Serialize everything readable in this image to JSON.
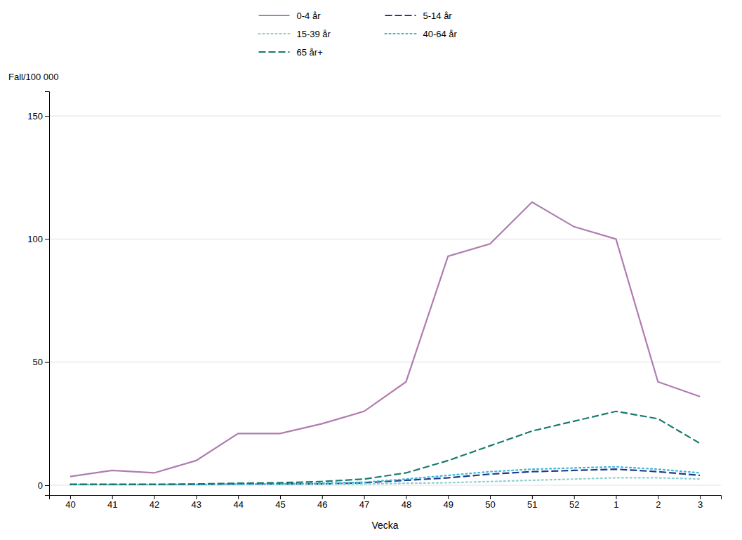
{
  "chart_data": {
    "type": "line",
    "x_label": "Vecka",
    "y_label": "Fall/100 000",
    "categories": [
      "40",
      "41",
      "42",
      "43",
      "44",
      "45",
      "46",
      "47",
      "48",
      "49",
      "50",
      "51",
      "52",
      "1",
      "2",
      "3"
    ],
    "series": [
      {
        "name": "0-4 år",
        "color": "#b07cb0",
        "line_style": "solid",
        "values": [
          3.5,
          6.0,
          5.0,
          10.0,
          21.0,
          21.0,
          25.0,
          30.0,
          42.0,
          93.0,
          98.0,
          115.0,
          105.0,
          100.0,
          42.0,
          36.0
        ]
      },
      {
        "name": "5-14 år",
        "color": "#1f3a8a",
        "line_style": "dashed",
        "values": [
          0.3,
          0.3,
          0.3,
          0.3,
          0.5,
          0.5,
          0.5,
          1.0,
          2.0,
          3.0,
          4.5,
          5.5,
          6.0,
          6.5,
          5.5,
          4.0
        ]
      },
      {
        "name": "15-39 år",
        "color": "#8ecfcf",
        "line_style": "dotted",
        "values": [
          0.2,
          0.2,
          0.2,
          0.2,
          0.3,
          0.3,
          0.4,
          0.5,
          0.8,
          1.0,
          1.5,
          2.0,
          2.5,
          3.0,
          3.0,
          2.5
        ]
      },
      {
        "name": "40-64 år",
        "color": "#3cb8d8",
        "line_style": "dotted",
        "values": [
          0.3,
          0.3,
          0.3,
          0.3,
          0.5,
          0.6,
          0.8,
          1.2,
          2.5,
          4.0,
          5.5,
          6.5,
          7.0,
          7.5,
          6.5,
          5.0
        ]
      },
      {
        "name": "65 år+",
        "color": "#1a7a6e",
        "line_style": "dashed",
        "values": [
          0.3,
          0.3,
          0.3,
          0.5,
          0.8,
          1.0,
          1.5,
          2.5,
          5.0,
          10.0,
          16.0,
          22.0,
          26.0,
          30.0,
          27.0,
          17.0
        ]
      }
    ],
    "ylim": [
      -4,
      160
    ],
    "yticks": [
      0,
      50,
      100,
      150
    ],
    "grid": true,
    "legend": "top"
  }
}
